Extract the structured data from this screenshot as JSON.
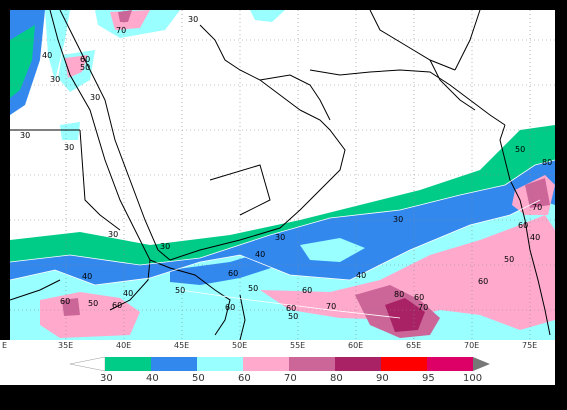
{
  "map": {
    "longitude_labels": [
      "35E",
      "40E",
      "45E",
      "50E",
      "55E",
      "60E",
      "65E",
      "70E",
      "75E"
    ],
    "longitude_edge_label": "E",
    "contour_labels": [
      "30",
      "40",
      "50",
      "60",
      "70",
      "80"
    ],
    "colors": {
      "c30": "#00cc88",
      "c40": "#3388ee",
      "c50": "#99ffff",
      "c60": "#ffaacc",
      "c70": "#cc6699",
      "c80": "#aa2266",
      "c90": "#ff0000",
      "c95": "#ff3388",
      "c100": "#dd0066",
      "land_line": "#000000",
      "grid": "#888888"
    }
  },
  "colorbar": {
    "labels": [
      "30",
      "40",
      "50",
      "60",
      "70",
      "80",
      "90",
      "95",
      "100"
    ],
    "colors": [
      "#00cc88",
      "#3388ee",
      "#99ffff",
      "#ffaacc",
      "#cc6699",
      "#aa2266",
      "#ff0000",
      "#ff3388",
      "#dd0066"
    ]
  }
}
